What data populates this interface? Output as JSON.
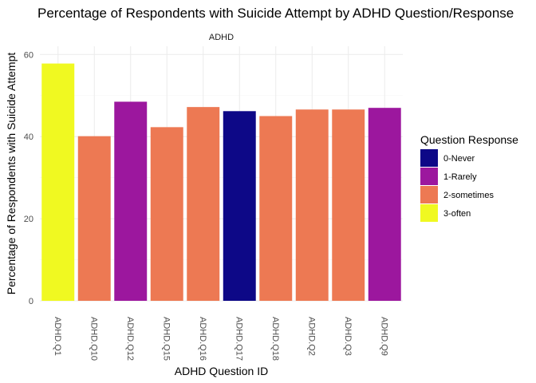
{
  "chart_data": {
    "type": "bar",
    "title": "Percentage of Respondents with Suicide Attempt by ADHD Question/Response",
    "facet_label": "ADHD",
    "xlabel": "ADHD Question ID",
    "ylabel": "Percentage of Respondents with Suicide Attempt",
    "ylim": [
      0,
      62
    ],
    "yticks": [
      0,
      20,
      40,
      60
    ],
    "grid": true,
    "categories": [
      "ADHD.Q1",
      "ADHD.Q10",
      "ADHD.Q12",
      "ADHD.Q15",
      "ADHD.Q16",
      "ADHD.Q17",
      "ADHD.Q18",
      "ADHD.Q2",
      "ADHD.Q3",
      "ADHD.Q9"
    ],
    "values": [
      57.8,
      40.1,
      48.5,
      42.3,
      47.2,
      46.2,
      45.0,
      46.6,
      46.6,
      47.0
    ],
    "responses": [
      "3-often",
      "2-sometimes",
      "1-Rarely",
      "2-sometimes",
      "2-sometimes",
      "0-Never",
      "2-sometimes",
      "2-sometimes",
      "2-sometimes",
      "1-Rarely"
    ],
    "legend": {
      "title": "Question Response",
      "position": "right",
      "entries": [
        {
          "label": "0-Never",
          "color": "#0d0887"
        },
        {
          "label": "1-Rarely",
          "color": "#9c179e"
        },
        {
          "label": "2-sometimes",
          "color": "#ed7953"
        },
        {
          "label": "3-often",
          "color": "#f0f921"
        }
      ]
    }
  }
}
